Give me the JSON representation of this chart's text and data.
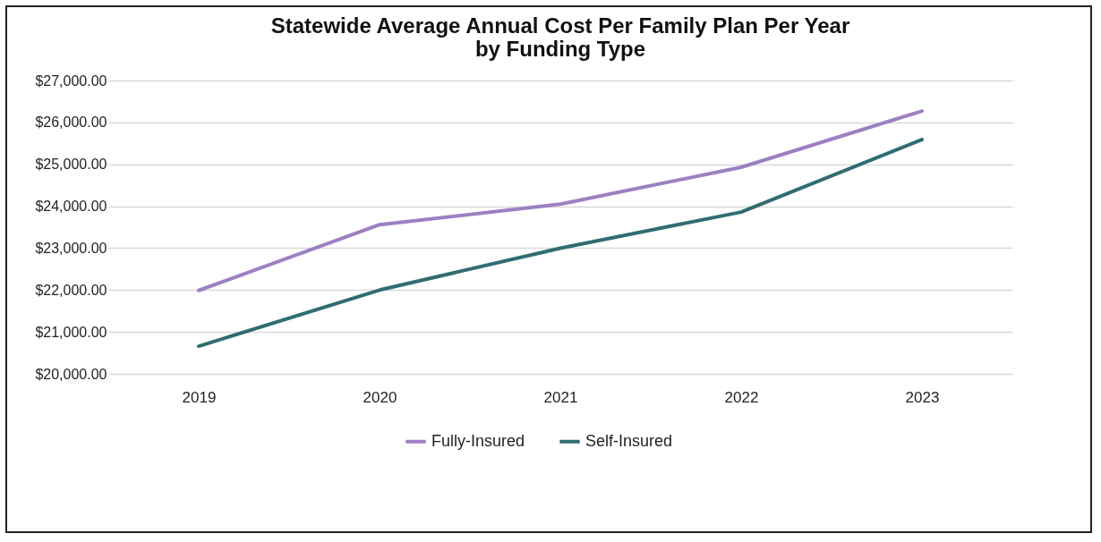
{
  "chart_data": {
    "type": "line",
    "title": "Statewide Average Annual Cost Per Family Plan Per Year\nby Funding Type",
    "categories": [
      "2019",
      "2020",
      "2021",
      "2022",
      "2023"
    ],
    "series": [
      {
        "name": "Fully-Insured",
        "color": "#9d80c2",
        "values": [
          21990,
          23560,
          24050,
          24930,
          26270
        ]
      },
      {
        "name": "Self-Insured",
        "color": "#2f6d72",
        "values": [
          20660,
          22000,
          23000,
          23860,
          25590
        ]
      }
    ],
    "ylim": [
      20000,
      27000
    ],
    "yticks": [
      {
        "value": 20000,
        "label": "$20,000.00"
      },
      {
        "value": 21000,
        "label": "$21,000.00"
      },
      {
        "value": 22000,
        "label": "$22,000.00"
      },
      {
        "value": 23000,
        "label": "$23,000.00"
      },
      {
        "value": 24000,
        "label": "$24,000.00"
      },
      {
        "value": 25000,
        "label": "$25,000.00"
      },
      {
        "value": 26000,
        "label": "$26,000.00"
      },
      {
        "value": 27000,
        "label": "$27,000.00"
      }
    ],
    "grid": "y",
    "legend": "bottom",
    "marker": "none",
    "line_style": "solid"
  }
}
